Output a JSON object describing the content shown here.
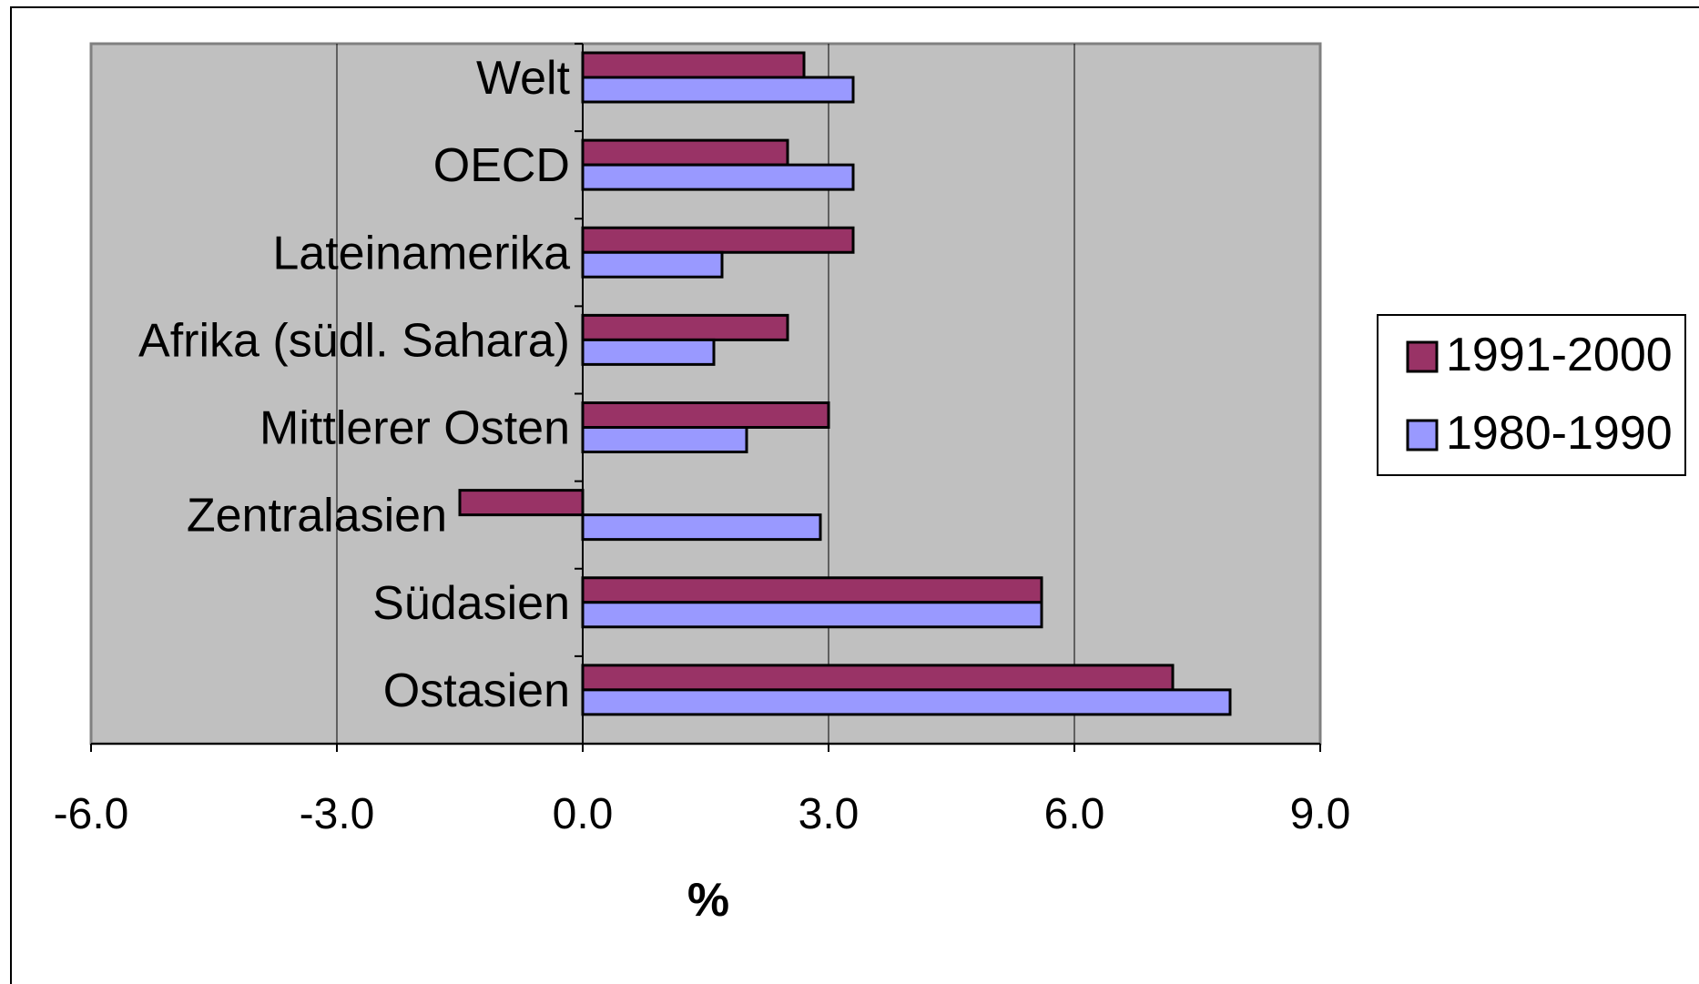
{
  "chart_data": {
    "type": "bar",
    "orientation": "horizontal",
    "categories": [
      "Welt",
      "OECD",
      "Lateinamerika",
      "Afrika (südl. Sahara)",
      "Mittlerer Osten",
      "Zentralasien",
      "Südasien",
      "Ostasien"
    ],
    "series": [
      {
        "name": "1991-2000",
        "color": "#993366",
        "values": [
          2.7,
          2.5,
          3.3,
          2.5,
          3.0,
          -1.5,
          5.6,
          7.2
        ]
      },
      {
        "name": "1980-1990",
        "color": "#9999ff",
        "values": [
          3.3,
          3.3,
          1.7,
          1.6,
          2.0,
          2.9,
          5.6,
          7.9
        ]
      }
    ],
    "xlabel": "%",
    "xlim": [
      -6.0,
      9.0
    ],
    "xticks": [
      "-6.0",
      "-3.0",
      "0.0",
      "3.0",
      "6.0",
      "9.0"
    ],
    "grid": true,
    "plot_background": "#c0c0c0",
    "legend_position": "right"
  }
}
